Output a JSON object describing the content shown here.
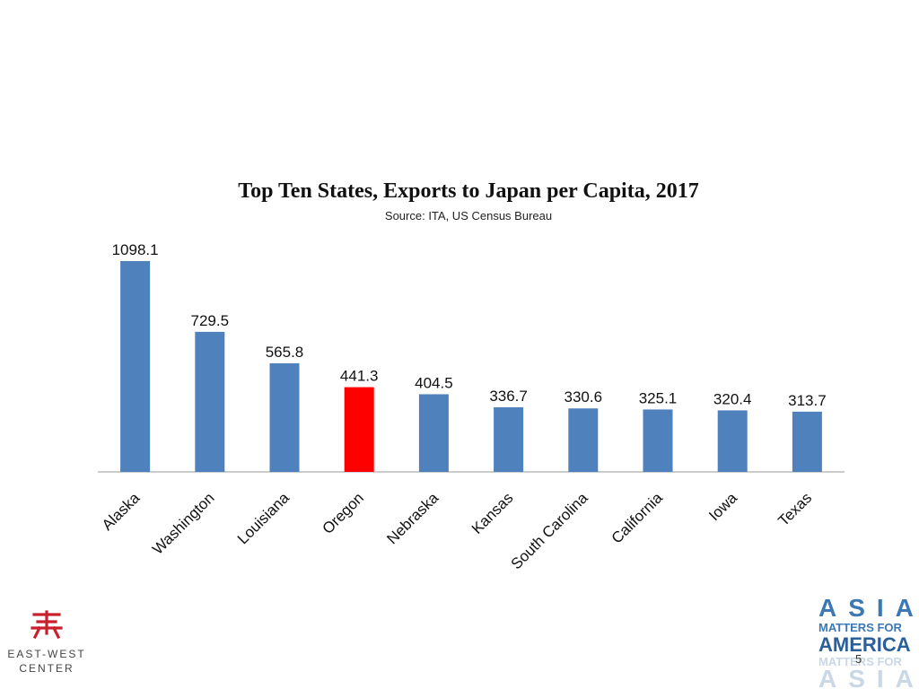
{
  "chart_data": {
    "type": "bar",
    "title": "Top Ten States, Exports to Japan per Capita, 2017",
    "subtitle": "Source: ITA, US Census Bureau",
    "xlabel": "",
    "ylabel": "",
    "categories": [
      "Alaska",
      "Washington",
      "Louisiana",
      "Oregon",
      "Nebraska",
      "Kansas",
      "South Carolina",
      "California",
      "Iowa",
      "Texas"
    ],
    "values": [
      1098.1,
      729.5,
      565.8,
      441.3,
      404.5,
      336.7,
      330.6,
      325.1,
      320.4,
      313.7
    ],
    "value_labels": [
      "1098.1",
      "729.5",
      "565.8",
      "441.3",
      "404.5",
      "336.7",
      "330.6",
      "325.1",
      "320.4",
      "313.7"
    ],
    "ylim": [
      0,
      1098.1
    ],
    "grid": false,
    "legend": "none",
    "colors": {
      "default": "#4f81bd",
      "highlight": "#ff0000",
      "highlight_category": "Oregon"
    }
  },
  "logos": {
    "ewc_line1": "EAST-WEST",
    "ewc_line2": "CENTER",
    "ewc_color": "#c8202f",
    "asia_line1": "ASIA",
    "asia_line2": "MATTERS FOR",
    "asia_line3": "AMERICA",
    "asia_line4": "MATTERS FOR",
    "asia_line5": "ASIA"
  },
  "page_number": "5"
}
